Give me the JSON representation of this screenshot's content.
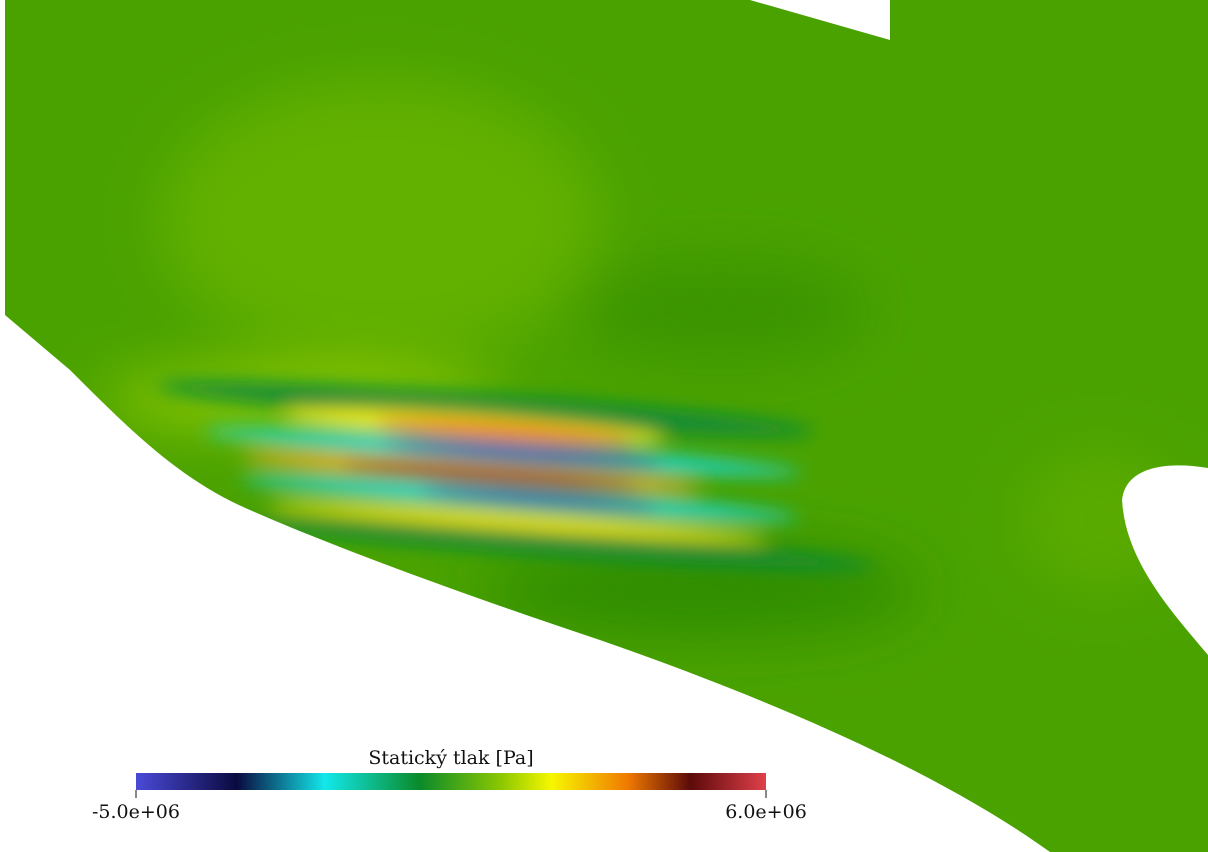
{
  "colorbar": {
    "title": "Statický tlak [Pa]",
    "min": {
      "value": -5000000,
      "label": "-5.0e+06"
    },
    "max": {
      "value": 6000000,
      "label": "6.0e+06"
    }
  }
}
